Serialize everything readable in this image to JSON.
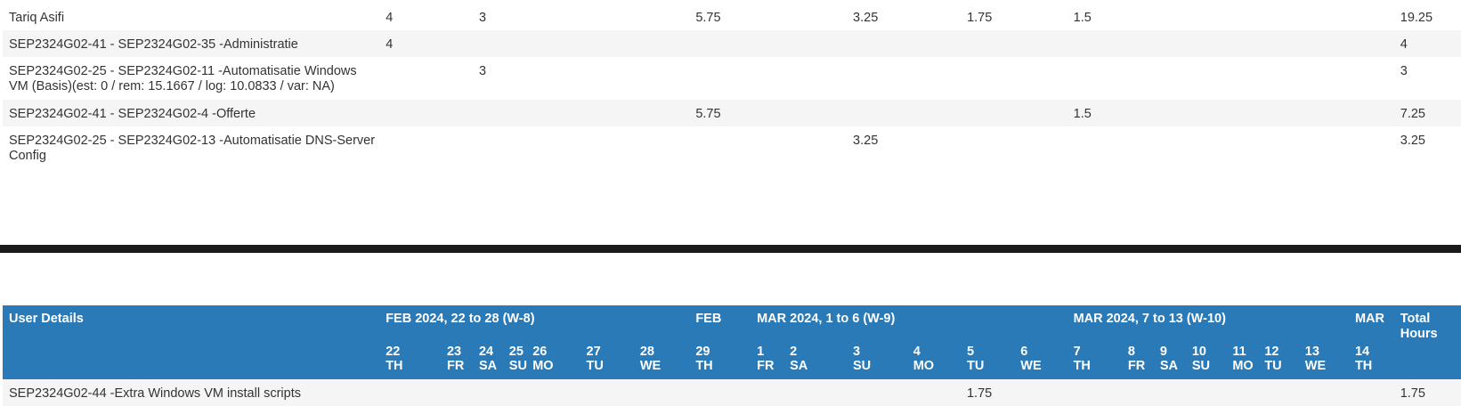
{
  "top_rows": [
    {
      "label": "Tariq Asifi",
      "c22": "4",
      "c24": "3",
      "c29": "5.75",
      "c03": "3.25",
      "c05": "1.75",
      "c07": "1.5",
      "total": "19.25"
    },
    {
      "label": "SEP2324G02-41 - SEP2324G02-35 -Administratie",
      "c22": "4",
      "c24": "",
      "c29": "",
      "c03": "",
      "c05": "",
      "c07": "",
      "total": "4"
    },
    {
      "label": "SEP2324G02-25 - SEP2324G02-11 -Automatisatie Windows VM (Basis)(est: 0 / rem: 15.1667 / log: 10.0833 / var: NA)",
      "c22": "",
      "c24": "3",
      "c29": "",
      "c03": "",
      "c05": "",
      "c07": "",
      "total": "3"
    },
    {
      "label": "SEP2324G02-41 - SEP2324G02-4 -Offerte",
      "c22": "",
      "c24": "",
      "c29": "5.75",
      "c03": "",
      "c05": "",
      "c07": "1.5",
      "total": "7.25"
    },
    {
      "label": "SEP2324G02-25 - SEP2324G02-13 -Automatisatie DNS-Server Config",
      "c22": "",
      "c24": "",
      "c29": "",
      "c03": "3.25",
      "c05": "",
      "c07": "",
      "total": "3.25"
    }
  ],
  "header": {
    "user_details": "User Details",
    "week8": "FEB 2024, 22 to 28 (W-8)",
    "feb": "FEB",
    "week9": "MAR 2024, 1 to 6 (W-9)",
    "week10": "MAR 2024, 7 to 13 (W-10)",
    "mar": "MAR",
    "total_hours": "Total Hours"
  },
  "days": [
    {
      "num": "22",
      "dow": "TH"
    },
    {
      "num": "23",
      "dow": "FR"
    },
    {
      "num": "24",
      "dow": "SA"
    },
    {
      "num": "25",
      "dow": "SU"
    },
    {
      "num": "26",
      "dow": "MO"
    },
    {
      "num": "27",
      "dow": "TU"
    },
    {
      "num": "28",
      "dow": "WE"
    },
    {
      "num": "29",
      "dow": "TH"
    },
    {
      "num": "1",
      "dow": "FR"
    },
    {
      "num": "2",
      "dow": "SA"
    },
    {
      "num": "3",
      "dow": "SU"
    },
    {
      "num": "4",
      "dow": "MO"
    },
    {
      "num": "5",
      "dow": "TU"
    },
    {
      "num": "6",
      "dow": "WE"
    },
    {
      "num": "7",
      "dow": "TH"
    },
    {
      "num": "8",
      "dow": "FR"
    },
    {
      "num": "9",
      "dow": "SA"
    },
    {
      "num": "10",
      "dow": "SU"
    },
    {
      "num": "11",
      "dow": "MO"
    },
    {
      "num": "12",
      "dow": "TU"
    },
    {
      "num": "13",
      "dow": "WE"
    },
    {
      "num": "14",
      "dow": "TH"
    }
  ],
  "bottom_row": {
    "label": "SEP2324G02-44 -Extra Windows VM install scripts",
    "value_day5": "1.75",
    "total": "1.75"
  }
}
